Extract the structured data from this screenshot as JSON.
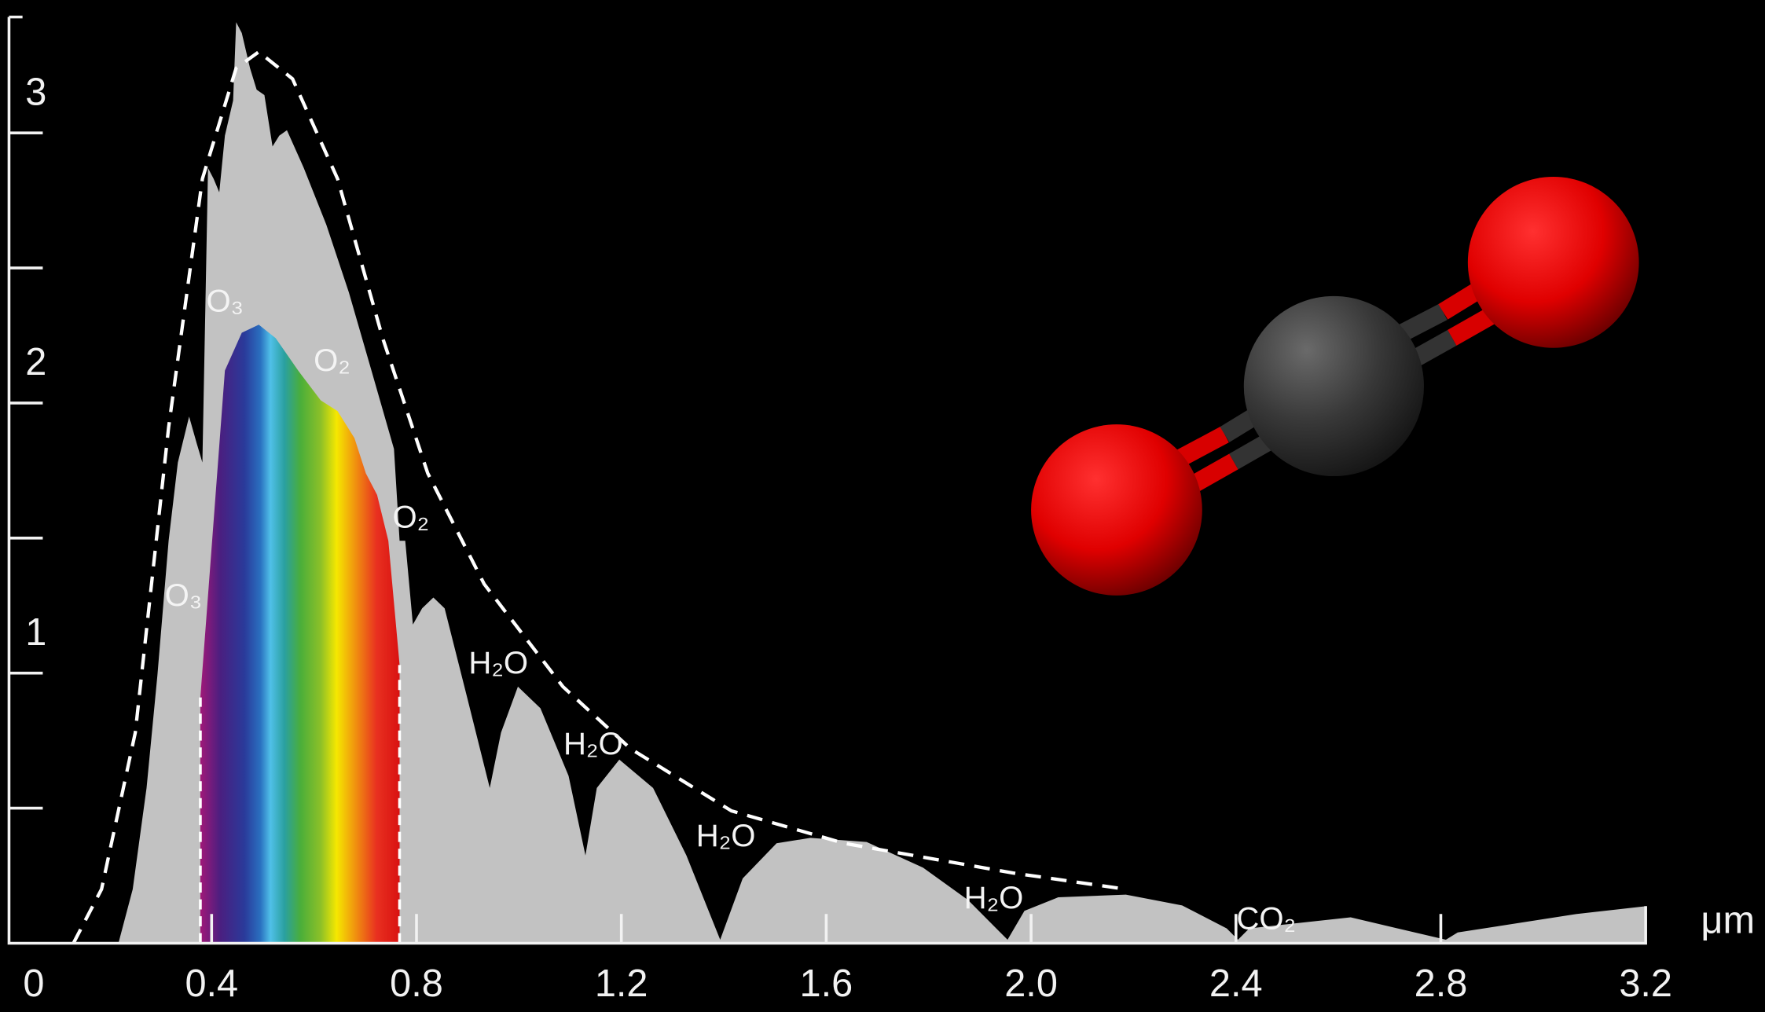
{
  "chart_data": {
    "type": "area",
    "xlabel": "μm",
    "xlim": [
      0,
      3.2
    ],
    "ylim": [
      0,
      3.45
    ],
    "xticks": [
      0,
      0.4,
      0.8,
      1.2,
      1.6,
      {
        "value": 2,
        "label": "2.0"
      },
      2.4,
      2.8,
      3.2
    ],
    "yticks": [
      1,
      2,
      3
    ],
    "yminorticks": [
      0.5,
      1.5,
      2.5
    ],
    "series": [
      {
        "color": "#c2c2c2",
        "fill": true,
        "x": [
          0.218,
          0.246,
          0.273,
          0.294,
          0.316,
          0.334,
          0.356,
          0.371,
          0.382,
          0.393,
          0.404,
          0.415,
          0.426,
          0.442,
          0.448,
          0.459,
          0.475,
          0.488,
          0.503,
          0.519,
          0.532,
          0.547,
          0.58,
          0.624,
          0.668,
          0.712,
          0.756,
          0.767,
          0.778,
          0.793,
          0.811,
          0.833,
          0.855,
          0.899,
          0.943,
          0.965,
          0.998,
          1.042,
          1.097,
          1.13,
          1.152,
          1.196,
          1.262,
          1.327,
          1.393,
          1.437,
          1.503,
          1.569,
          1.679,
          1.789,
          1.877,
          1.954,
          1.987,
          2.053,
          2.185,
          2.295,
          2.382,
          2.404,
          2.426,
          2.624,
          2.81,
          2.833,
          3.064,
          3.2
        ],
        "values": [
          0,
          0.2,
          0.575,
          0.99,
          1.49,
          1.78,
          1.95,
          1.85,
          1.78,
          2.87,
          2.83,
          2.78,
          2.99,
          3.12,
          3.41,
          3.37,
          3.24,
          3.16,
          3.14,
          2.95,
          2.99,
          3.01,
          2.87,
          2.66,
          2.41,
          2.12,
          1.83,
          1.49,
          1.49,
          1.18,
          1.24,
          1.28,
          1.24,
          0.91,
          0.575,
          0.78,
          0.95,
          0.87,
          0.62,
          0.325,
          0.575,
          0.68,
          0.575,
          0.325,
          0.013,
          0.24,
          0.37,
          0.39,
          0.375,
          0.28,
          0.16,
          0.013,
          0.12,
          0.17,
          0.18,
          0.14,
          0.055,
          0.013,
          0.055,
          0.096,
          0.013,
          0.04,
          0.108,
          0.137
        ]
      },
      {
        "color": "#ffffff",
        "fill": true,
        "gradient": true,
        "x": [
          0.378,
          0.426,
          0.459,
          0.492,
          0.525,
          0.569,
          0.613,
          0.646,
          0.679,
          0.701,
          0.723,
          0.745,
          0.767
        ],
        "values": [
          0.91,
          2.12,
          2.26,
          2.29,
          2.24,
          2.12,
          2.01,
          1.97,
          1.87,
          1.74,
          1.66,
          1.49,
          1.03
        ]
      },
      {
        "color": "#ffffff",
        "dashed": true,
        "x": [
          0.13,
          0.185,
          0.251,
          0.316,
          0.382,
          0.448,
          0.492,
          0.558,
          0.646,
          0.734,
          0.822,
          0.932,
          1.086,
          1.218,
          1.415,
          1.635,
          1.965,
          2.185
        ],
        "values": [
          0,
          0.2,
          0.78,
          1.91,
          2.83,
          3.24,
          3.3,
          3.2,
          2.83,
          2.24,
          1.74,
          1.33,
          0.95,
          0.72,
          0.49,
          0.37,
          0.26,
          0.2
        ]
      }
    ],
    "annotations": [
      {
        "text": "O₃",
        "x": 0.426,
        "y": 2.37
      },
      {
        "text": "O₂",
        "x": 0.635,
        "y": 2.15
      },
      {
        "text": "O₂",
        "x": 0.789,
        "y": 1.57
      },
      {
        "text": "O₃",
        "x": 0.345,
        "y": 1.28
      },
      {
        "text": "H₂O",
        "x": 0.96,
        "y": 1.03
      },
      {
        "text": "H₂O",
        "x": 1.145,
        "y": 0.73
      },
      {
        "text": "H₂O",
        "x": 1.404,
        "y": 0.39
      },
      {
        "text": "H₂O",
        "x": 1.927,
        "y": 0.16
      },
      {
        "text": "CO₂",
        "x": 2.459,
        "y": 0.083
      }
    ]
  }
}
